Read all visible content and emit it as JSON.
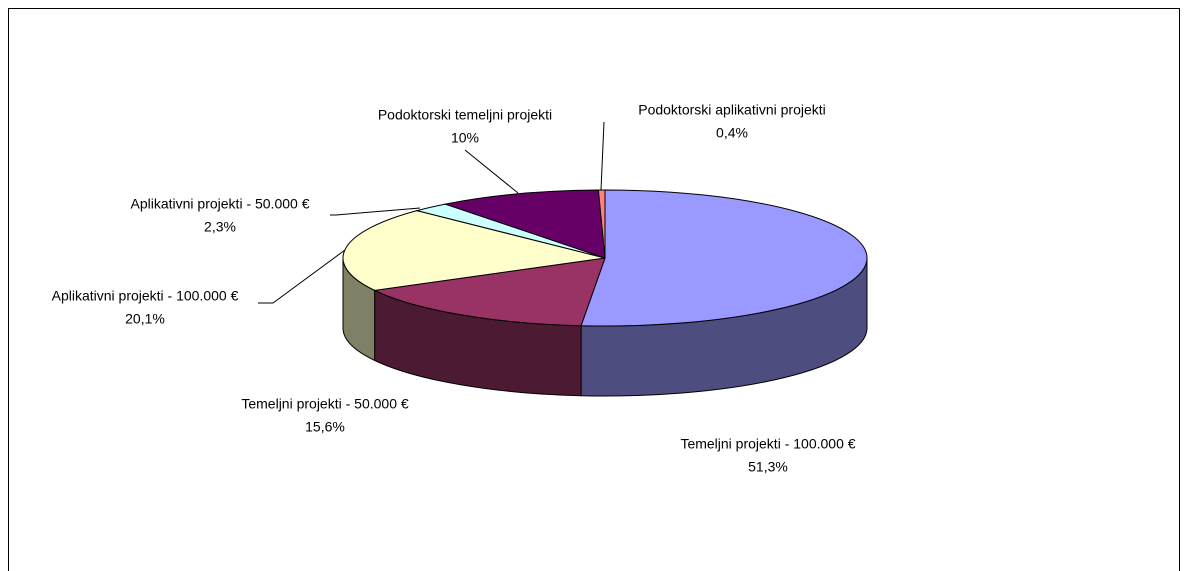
{
  "chart_data": {
    "type": "pie3d",
    "categories": [
      "Temeljni projekti - 100.000 €",
      "Temeljni projekti - 50.000 €",
      "Aplikativni projekti - 100.000 €",
      "Aplikativni projekti - 50.000 €",
      "Podoktorski temeljni projekti",
      "Podoktorski aplikativni projekti"
    ],
    "values": [
      51.3,
      15.6,
      20.1,
      2.3,
      10,
      0.4
    ],
    "value_labels": [
      "51,3%",
      "15,6%",
      "20,1%",
      "2,3%",
      "10%",
      "0,4%"
    ],
    "colors": [
      "#9999ff",
      "#993366",
      "#ffffcc",
      "#ccffff",
      "#660066",
      "#ff8080"
    ]
  }
}
